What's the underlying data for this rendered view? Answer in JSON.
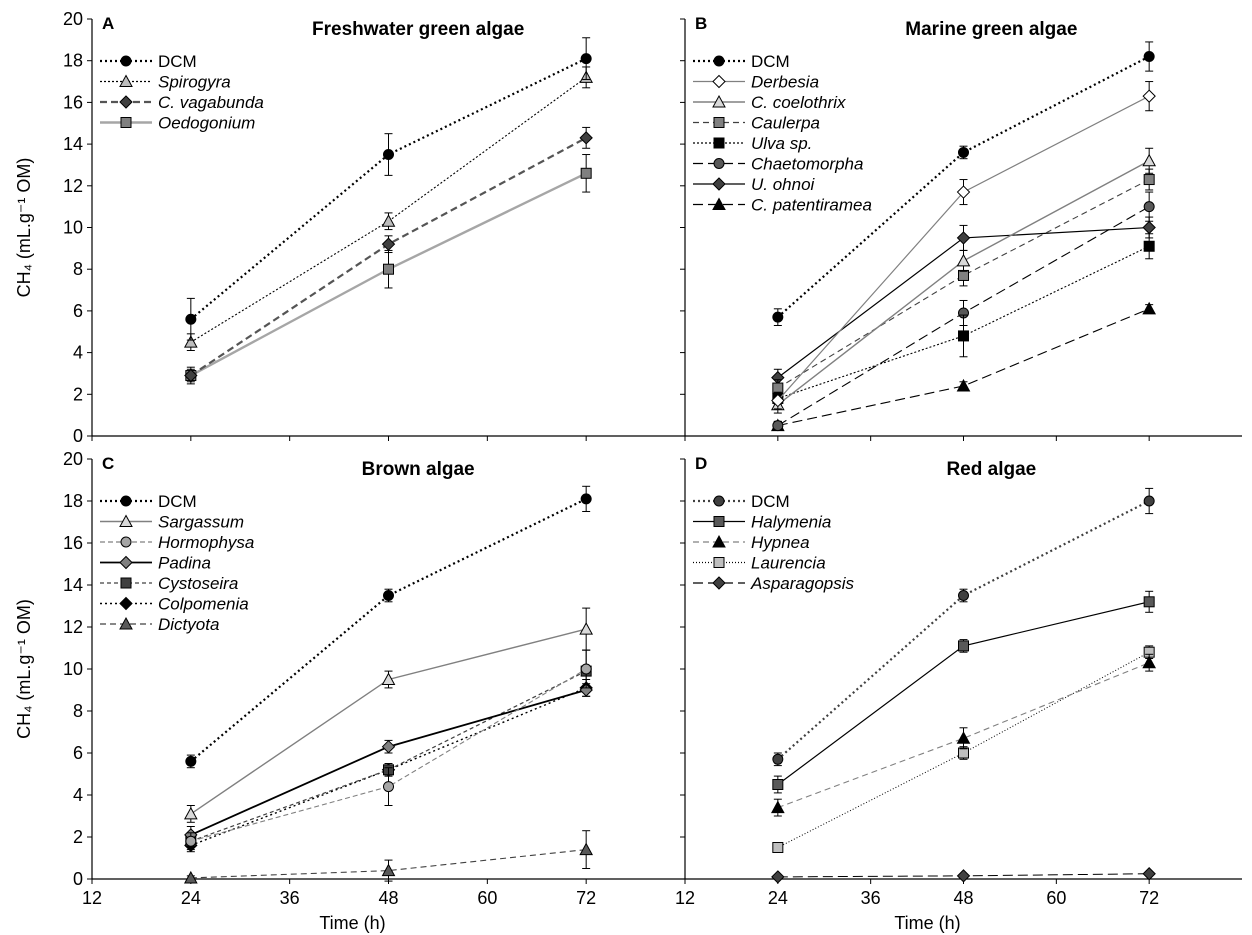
{
  "y_axis_label": "CH₄ (mL.g⁻¹ OM)",
  "x_axis_label": "Time (h)",
  "x_ticks": [
    "12",
    "24",
    "36",
    "48",
    "60",
    "72"
  ],
  "y_ticks": [
    "0",
    "2",
    "4",
    "6",
    "8",
    "10",
    "12",
    "14",
    "16",
    "18",
    "20"
  ],
  "chart_data": [
    {
      "type": "line",
      "panel": "A",
      "title": "Freshwater green algae",
      "xlabel": "",
      "ylabel": "CH₄ (mL.g⁻¹ OM)",
      "x": [
        24,
        48,
        72
      ],
      "xlim": [
        12,
        84
      ],
      "ylim": [
        0,
        20
      ],
      "legend_position": "top-left",
      "series": [
        {
          "name": "DCM",
          "values": [
            5.6,
            13.5,
            18.1
          ],
          "errors": [
            1.0,
            1.0,
            1.0
          ],
          "color": "#000000",
          "dash": "2,3",
          "width": 2.2,
          "marker": "circle",
          "fill": "#000000",
          "italic": false
        },
        {
          "name": "Spirogyra",
          "values": [
            4.5,
            10.3,
            17.2
          ],
          "errors": [
            0.4,
            0.4,
            0.5
          ],
          "color": "#000000",
          "dash": "2,2",
          "width": 1.1,
          "marker": "triangle",
          "fill": "#bdbdbd",
          "italic": true
        },
        {
          "name": "C. vagabunda",
          "values": [
            2.9,
            9.2,
            14.3
          ],
          "errors": [
            0.3,
            0.4,
            0.5
          ],
          "color": "#555555",
          "dash": "7,4",
          "width": 2.2,
          "marker": "diamond",
          "fill": "#404040",
          "italic": true
        },
        {
          "name": "Oedogonium",
          "values": [
            2.9,
            8.0,
            12.6
          ],
          "errors": [
            0.4,
            0.9,
            0.9
          ],
          "color": "#a6a6a6",
          "dash": "",
          "width": 2.4,
          "marker": "square",
          "fill": "#808080",
          "italic": true
        }
      ]
    },
    {
      "type": "line",
      "panel": "B",
      "title": "Marine green algae",
      "xlabel": "",
      "ylabel": "",
      "x": [
        24,
        48,
        72
      ],
      "xlim": [
        12,
        84
      ],
      "ylim": [
        0,
        20
      ],
      "legend_position": "top-left",
      "series": [
        {
          "name": "DCM",
          "values": [
            5.7,
            13.6,
            18.2
          ],
          "errors": [
            0.4,
            0.3,
            0.7
          ],
          "color": "#000000",
          "dash": "2,3",
          "width": 2.2,
          "marker": "circle",
          "fill": "#000000",
          "italic": false
        },
        {
          "name": "Derbesia",
          "values": [
            1.7,
            11.7,
            16.3
          ],
          "errors": [
            0.4,
            0.6,
            0.7
          ],
          "color": "#808080",
          "dash": "",
          "width": 1.2,
          "marker": "diamond",
          "fill": "#ffffff",
          "italic": true
        },
        {
          "name": "C. coelothrix",
          "values": [
            1.5,
            8.4,
            13.2
          ],
          "errors": [
            0.4,
            0.5,
            0.6
          ],
          "color": "#808080",
          "dash": "",
          "width": 1.4,
          "marker": "triangle",
          "fill": "#d9d9d9",
          "italic": true
        },
        {
          "name": "Caulerpa",
          "values": [
            2.3,
            7.7,
            12.3
          ],
          "errors": [
            0.4,
            0.5,
            0.5
          ],
          "color": "#404040",
          "dash": "6,4",
          "width": 1.1,
          "marker": "square",
          "fill": "#808080",
          "italic": true
        },
        {
          "name": "Ulva sp.",
          "values": [
            1.8,
            4.8,
            9.1
          ],
          "errors": [
            0.3,
            1.0,
            0.6
          ],
          "color": "#000000",
          "dash": "2,2",
          "width": 1.1,
          "marker": "square",
          "fill": "#000000",
          "italic": true
        },
        {
          "name": "Chaetomorpha",
          "values": [
            0.5,
            5.9,
            11.0
          ],
          "errors": [
            0.2,
            0.6,
            0.7
          ],
          "color": "#000000",
          "dash": "10,5",
          "width": 1.1,
          "marker": "circle",
          "fill": "#595959",
          "italic": true
        },
        {
          "name": "U. ohnoi",
          "values": [
            2.8,
            9.5,
            10.0
          ],
          "errors": [
            0.4,
            0.6,
            0.5
          ],
          "color": "#000000",
          "dash": "",
          "width": 1.2,
          "marker": "diamond",
          "fill": "#404040",
          "italic": true
        },
        {
          "name": "C. patentiramea",
          "values": [
            0.5,
            2.4,
            6.1
          ],
          "errors": [
            0.2,
            0.2,
            0.2
          ],
          "color": "#000000",
          "dash": "10,5",
          "width": 1.1,
          "marker": "triangle",
          "fill": "#000000",
          "italic": true
        }
      ]
    },
    {
      "type": "line",
      "panel": "C",
      "title": "Brown algae",
      "xlabel": "Time (h)",
      "ylabel": "CH₄ (mL.g⁻¹ OM)",
      "x": [
        24,
        48,
        72
      ],
      "xlim": [
        12,
        84
      ],
      "ylim": [
        0,
        20
      ],
      "legend_position": "top-left",
      "series": [
        {
          "name": "DCM",
          "values": [
            5.6,
            13.5,
            18.1
          ],
          "errors": [
            0.3,
            0.3,
            0.6
          ],
          "color": "#000000",
          "dash": "2,3",
          "width": 2.2,
          "marker": "circle",
          "fill": "#000000",
          "italic": false
        },
        {
          "name": "Sargassum",
          "values": [
            3.1,
            9.5,
            11.9
          ],
          "errors": [
            0.4,
            0.4,
            1.0
          ],
          "color": "#808080",
          "dash": "",
          "width": 1.4,
          "marker": "triangle",
          "fill": "#d9d9d9",
          "italic": true
        },
        {
          "name": "Hormophysa",
          "values": [
            1.8,
            4.4,
            10.0
          ],
          "errors": [
            0.4,
            0.9,
            0.9
          ],
          "color": "#808080",
          "dash": "5,3",
          "width": 1.1,
          "marker": "circle",
          "fill": "#a6a6a6",
          "italic": true
        },
        {
          "name": "Padina",
          "values": [
            2.1,
            6.3,
            9.0
          ],
          "errors": [
            0.4,
            0.3,
            0.3
          ],
          "color": "#000000",
          "dash": "",
          "width": 1.8,
          "marker": "diamond",
          "fill": "#808080",
          "italic": true
        },
        {
          "name": "Cystoseira",
          "values": [
            1.8,
            5.2,
            9.9
          ],
          "errors": [
            0.3,
            0.3,
            1.0
          ],
          "color": "#404040",
          "dash": "4,3",
          "width": 1.2,
          "marker": "square",
          "fill": "#404040",
          "italic": true
        },
        {
          "name": "Colpomenia",
          "values": [
            1.6,
            5.2,
            9.1
          ],
          "errors": [
            0.3,
            0.3,
            0.4
          ],
          "color": "#000000",
          "dash": "2,3",
          "width": 1.4,
          "marker": "diamond",
          "fill": "#000000",
          "italic": true
        },
        {
          "name": "Dictyota",
          "values": [
            0.05,
            0.4,
            1.4
          ],
          "errors": [
            0.1,
            0.5,
            0.9
          ],
          "color": "#404040",
          "dash": "6,4",
          "width": 1.1,
          "marker": "triangle",
          "fill": "#595959",
          "italic": true
        }
      ]
    },
    {
      "type": "line",
      "panel": "D",
      "title": "Red algae",
      "xlabel": "Time (h)",
      "ylabel": "",
      "x": [
        24,
        48,
        72
      ],
      "xlim": [
        12,
        84
      ],
      "ylim": [
        0,
        20
      ],
      "legend_position": "top-left",
      "series": [
        {
          "name": "DCM",
          "values": [
            5.7,
            13.5,
            18.0
          ],
          "errors": [
            0.3,
            0.3,
            0.6
          ],
          "color": "#404040",
          "dash": "2,3",
          "width": 2.2,
          "marker": "circle",
          "fill": "#404040",
          "italic": false
        },
        {
          "name": "Halymenia",
          "values": [
            4.5,
            11.1,
            13.2
          ],
          "errors": [
            0.4,
            0.3,
            0.5
          ],
          "color": "#000000",
          "dash": "",
          "width": 1.2,
          "marker": "square",
          "fill": "#595959",
          "italic": true
        },
        {
          "name": "Hypnea",
          "values": [
            3.4,
            6.7,
            10.3
          ],
          "errors": [
            0.4,
            0.5,
            0.4
          ],
          "color": "#808080",
          "dash": "6,4",
          "width": 1.1,
          "marker": "triangle",
          "fill": "#000000",
          "italic": true
        },
        {
          "name": "Laurencia",
          "values": [
            1.5,
            6.0,
            10.8
          ],
          "errors": [
            0.2,
            0.3,
            0.3
          ],
          "color": "#000000",
          "dash": "1,2",
          "width": 1.0,
          "marker": "square",
          "fill": "#bfbfbf",
          "italic": true
        },
        {
          "name": "Asparagopsis",
          "values": [
            0.1,
            0.15,
            0.25
          ],
          "errors": [
            0.05,
            0.05,
            0.05
          ],
          "color": "#000000",
          "dash": "10,5",
          "width": 1.0,
          "marker": "diamond",
          "fill": "#404040",
          "italic": true
        }
      ]
    }
  ]
}
